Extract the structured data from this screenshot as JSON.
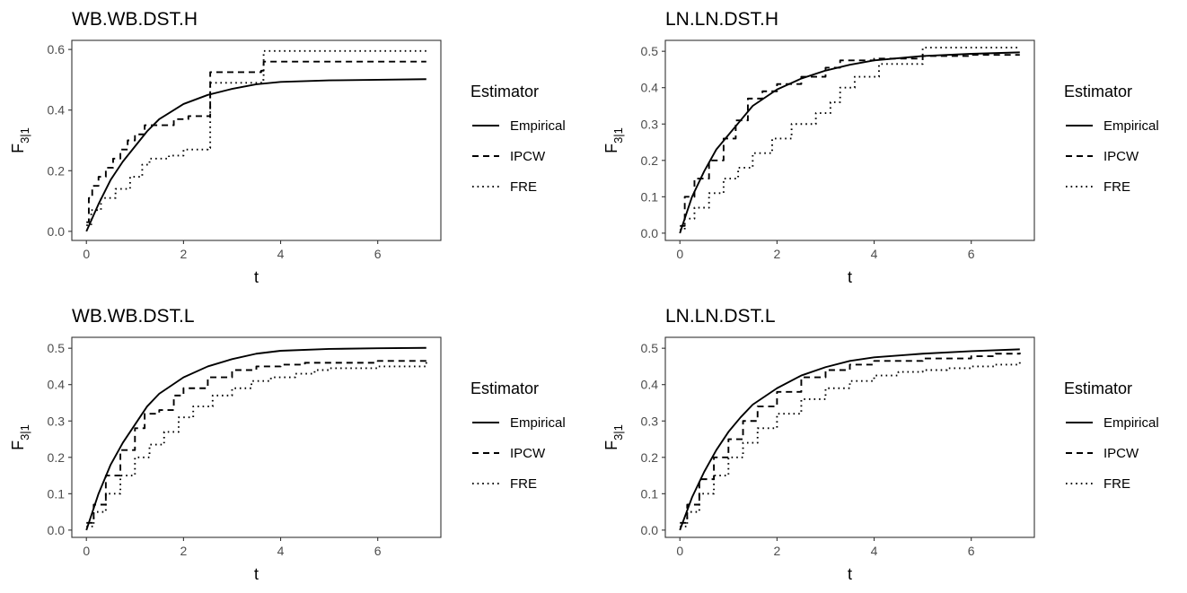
{
  "chart_data": [
    {
      "type": "line",
      "title": "WB.WB.DST.H",
      "xlabel": "t",
      "ylabel": "F",
      "ylabel_subscript": "3|1",
      "xlim": [
        -0.3,
        7.3
      ],
      "ylim": [
        -0.03,
        0.63
      ],
      "xticks": [
        0,
        2,
        4,
        6
      ],
      "yticks": [
        0.0,
        0.2,
        0.4,
        0.6
      ],
      "ytick_labels": [
        "0.0",
        "0.2",
        "0.4",
        "0.6"
      ],
      "grid": false,
      "legend": {
        "title": "Estimator",
        "position": "right",
        "entries": [
          "Empirical",
          "IPCW",
          "FRE"
        ]
      },
      "series": [
        {
          "name": "Empirical",
          "style": "solid",
          "step": false,
          "x": [
            0,
            0.25,
            0.5,
            0.75,
            1,
            1.25,
            1.5,
            2,
            2.5,
            3,
            3.5,
            4,
            5,
            6,
            7
          ],
          "y": [
            0,
            0.09,
            0.17,
            0.23,
            0.28,
            0.33,
            0.37,
            0.42,
            0.45,
            0.47,
            0.485,
            0.493,
            0.498,
            0.5,
            0.502
          ]
        },
        {
          "name": "IPCW",
          "style": "dashed",
          "step": true,
          "x": [
            0,
            0.05,
            0.12,
            0.25,
            0.4,
            0.55,
            0.7,
            0.85,
            1.0,
            1.2,
            1.5,
            1.8,
            2.1,
            2.5,
            2.55,
            3.6,
            3.65,
            7
          ],
          "y": [
            0.03,
            0.11,
            0.15,
            0.18,
            0.21,
            0.24,
            0.27,
            0.3,
            0.32,
            0.35,
            0.35,
            0.37,
            0.38,
            0.38,
            0.525,
            0.53,
            0.56,
            0.56
          ]
        },
        {
          "name": "FRE",
          "style": "dotted",
          "step": true,
          "x": [
            0,
            0.1,
            0.3,
            0.6,
            0.9,
            1.15,
            1.3,
            1.7,
            2.0,
            2.5,
            2.55,
            3.6,
            3.65,
            7
          ],
          "y": [
            0.02,
            0.07,
            0.11,
            0.14,
            0.18,
            0.22,
            0.24,
            0.25,
            0.27,
            0.275,
            0.49,
            0.5,
            0.595,
            0.595
          ]
        }
      ]
    },
    {
      "type": "line",
      "title": "LN.LN.DST.H",
      "xlabel": "t",
      "ylabel": "F",
      "ylabel_subscript": "3|1",
      "xlim": [
        -0.3,
        7.3
      ],
      "ylim": [
        -0.02,
        0.53
      ],
      "xticks": [
        0,
        2,
        4,
        6
      ],
      "yticks": [
        0.0,
        0.1,
        0.2,
        0.3,
        0.4,
        0.5
      ],
      "ytick_labels": [
        "0.0",
        "0.1",
        "0.2",
        "0.3",
        "0.4",
        "0.5"
      ],
      "grid": false,
      "legend": {
        "title": "Estimator",
        "position": "right",
        "entries": [
          "Empirical",
          "IPCW",
          "FRE"
        ]
      },
      "series": [
        {
          "name": "Empirical",
          "style": "solid",
          "step": false,
          "x": [
            0,
            0.25,
            0.5,
            0.75,
            1,
            1.25,
            1.5,
            2,
            2.5,
            3,
            3.5,
            4,
            5,
            6,
            7
          ],
          "y": [
            0,
            0.1,
            0.17,
            0.23,
            0.27,
            0.31,
            0.35,
            0.395,
            0.425,
            0.447,
            0.463,
            0.475,
            0.487,
            0.493,
            0.497
          ]
        },
        {
          "name": "IPCW",
          "style": "dashed",
          "step": true,
          "x": [
            0,
            0.1,
            0.3,
            0.6,
            0.9,
            1.15,
            1.4,
            1.7,
            2.0,
            2.5,
            3.0,
            3.3,
            4.0,
            5.0,
            6.0,
            7
          ],
          "y": [
            0.02,
            0.1,
            0.15,
            0.2,
            0.26,
            0.31,
            0.37,
            0.39,
            0.41,
            0.43,
            0.455,
            0.475,
            0.48,
            0.487,
            0.49,
            0.49
          ]
        },
        {
          "name": "FRE",
          "style": "dotted",
          "step": true,
          "x": [
            0,
            0.1,
            0.3,
            0.6,
            0.9,
            1.2,
            1.5,
            1.9,
            2.3,
            2.8,
            3.1,
            3.3,
            3.6,
            4.0,
            4.1,
            4.95,
            5.0,
            7
          ],
          "y": [
            0.01,
            0.04,
            0.07,
            0.11,
            0.15,
            0.18,
            0.22,
            0.26,
            0.3,
            0.33,
            0.36,
            0.4,
            0.43,
            0.43,
            0.465,
            0.465,
            0.51,
            0.51
          ]
        }
      ]
    },
    {
      "type": "line",
      "title": "WB.WB.DST.L",
      "xlabel": "t",
      "ylabel": "F",
      "ylabel_subscript": "3|1",
      "xlim": [
        -0.3,
        7.3
      ],
      "ylim": [
        -0.02,
        0.53
      ],
      "xticks": [
        0,
        2,
        4,
        6
      ],
      "yticks": [
        0.0,
        0.1,
        0.2,
        0.3,
        0.4,
        0.5
      ],
      "ytick_labels": [
        "0.0",
        "0.1",
        "0.2",
        "0.3",
        "0.4",
        "0.5"
      ],
      "grid": false,
      "legend": {
        "title": "Estimator",
        "position": "right",
        "entries": [
          "Empirical",
          "IPCW",
          "FRE"
        ]
      },
      "series": [
        {
          "name": "Empirical",
          "style": "solid",
          "step": false,
          "x": [
            0,
            0.25,
            0.5,
            0.75,
            1,
            1.25,
            1.5,
            2,
            2.5,
            3,
            3.5,
            4,
            5,
            6,
            7
          ],
          "y": [
            0,
            0.1,
            0.18,
            0.24,
            0.29,
            0.34,
            0.375,
            0.42,
            0.45,
            0.47,
            0.485,
            0.493,
            0.498,
            0.5,
            0.501
          ]
        },
        {
          "name": "IPCW",
          "style": "dashed",
          "step": true,
          "x": [
            0,
            0.15,
            0.4,
            0.7,
            1.0,
            1.2,
            1.5,
            1.8,
            2.0,
            2.5,
            3.0,
            3.5,
            4.0,
            4.5,
            5.0,
            6.0,
            7
          ],
          "y": [
            0.02,
            0.07,
            0.15,
            0.22,
            0.28,
            0.32,
            0.33,
            0.37,
            0.39,
            0.42,
            0.44,
            0.45,
            0.455,
            0.46,
            0.46,
            0.465,
            0.465
          ]
        },
        {
          "name": "FRE",
          "style": "dotted",
          "step": true,
          "x": [
            0,
            0.15,
            0.4,
            0.7,
            1.0,
            1.3,
            1.6,
            1.9,
            2.2,
            2.6,
            3.0,
            3.4,
            3.8,
            4.3,
            4.7,
            5.0,
            6.0,
            7
          ],
          "y": [
            0.01,
            0.05,
            0.1,
            0.15,
            0.2,
            0.235,
            0.27,
            0.31,
            0.34,
            0.37,
            0.39,
            0.41,
            0.42,
            0.43,
            0.44,
            0.445,
            0.45,
            0.465
          ]
        }
      ]
    },
    {
      "type": "line",
      "title": "LN.LN.DST.L",
      "xlabel": "t",
      "ylabel": "F",
      "ylabel_subscript": "3|1",
      "xlim": [
        -0.3,
        7.3
      ],
      "ylim": [
        -0.02,
        0.53
      ],
      "xticks": [
        0,
        2,
        4,
        6
      ],
      "yticks": [
        0.0,
        0.1,
        0.2,
        0.3,
        0.4,
        0.5
      ],
      "ytick_labels": [
        "0.0",
        "0.1",
        "0.2",
        "0.3",
        "0.4",
        "0.5"
      ],
      "grid": false,
      "legend": {
        "title": "Estimator",
        "position": "right",
        "entries": [
          "Empirical",
          "IPCW",
          "FRE"
        ]
      },
      "series": [
        {
          "name": "Empirical",
          "style": "solid",
          "step": false,
          "x": [
            0,
            0.25,
            0.5,
            0.75,
            1,
            1.25,
            1.5,
            2,
            2.5,
            3,
            3.5,
            4,
            5,
            6,
            7
          ],
          "y": [
            0,
            0.09,
            0.16,
            0.22,
            0.27,
            0.31,
            0.345,
            0.39,
            0.425,
            0.448,
            0.465,
            0.475,
            0.485,
            0.492,
            0.497
          ]
        },
        {
          "name": "IPCW",
          "style": "dashed",
          "step": true,
          "x": [
            0,
            0.15,
            0.4,
            0.7,
            1.0,
            1.3,
            1.6,
            2.0,
            2.5,
            3.0,
            3.5,
            4.0,
            5.0,
            6.0,
            6.5,
            7
          ],
          "y": [
            0.02,
            0.07,
            0.14,
            0.2,
            0.25,
            0.3,
            0.34,
            0.38,
            0.42,
            0.44,
            0.455,
            0.465,
            0.472,
            0.478,
            0.485,
            0.488
          ]
        },
        {
          "name": "FRE",
          "style": "dotted",
          "step": true,
          "x": [
            0,
            0.15,
            0.4,
            0.7,
            1.0,
            1.3,
            1.6,
            2.0,
            2.5,
            3.0,
            3.5,
            4.0,
            4.5,
            5.0,
            5.5,
            6.0,
            6.5,
            7
          ],
          "y": [
            0.01,
            0.05,
            0.1,
            0.15,
            0.2,
            0.24,
            0.28,
            0.32,
            0.36,
            0.39,
            0.41,
            0.425,
            0.435,
            0.44,
            0.445,
            0.45,
            0.455,
            0.465
          ]
        }
      ]
    }
  ]
}
